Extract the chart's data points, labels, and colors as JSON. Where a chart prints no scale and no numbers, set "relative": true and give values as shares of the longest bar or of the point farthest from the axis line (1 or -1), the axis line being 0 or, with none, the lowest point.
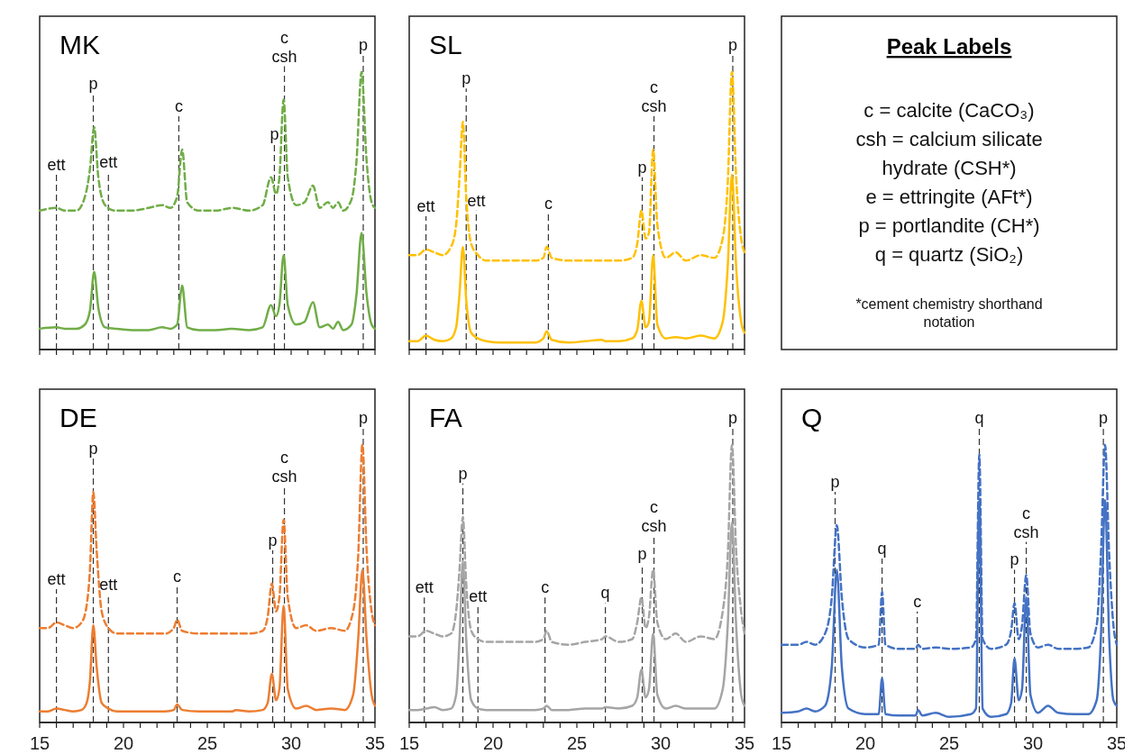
{
  "chart_data": [
    {
      "type": "line",
      "title": "MK",
      "relative": true,
      "xlim": [
        15,
        35
      ],
      "tick_labels": false,
      "xticks": [
        15,
        {
          "value": 16,
          "label": null
        },
        {
          "value": 17,
          "label": null
        },
        {
          "value": 18,
          "label": null
        },
        {
          "value": 19,
          "label": null
        },
        20,
        {
          "value": 21,
          "label": null
        },
        {
          "value": 22,
          "label": null
        },
        {
          "value": 23,
          "label": null
        },
        {
          "value": 24,
          "label": null
        },
        25,
        {
          "value": 26,
          "label": null
        },
        {
          "value": 27,
          "label": null
        },
        {
          "value": 28,
          "label": null
        },
        {
          "value": 29,
          "label": null
        },
        30,
        {
          "value": 31,
          "label": null
        },
        {
          "value": 32,
          "label": null
        },
        {
          "value": 33,
          "label": null
        },
        {
          "value": 34,
          "label": null
        },
        35
      ],
      "x": [
        15,
        16,
        16.5,
        17.2,
        17.7,
        18,
        18.25,
        18.5,
        18.9,
        19.5,
        20.5,
        21.5,
        22.3,
        22.8,
        23.2,
        23.5,
        23.8,
        24.5,
        25.5,
        26.5,
        27.5,
        28.3,
        28.8,
        29.1,
        29.3,
        29.55,
        29.8,
        30.3,
        30.8,
        31.3,
        31.7,
        32.2,
        32.5,
        32.8,
        33.1,
        33.6,
        33.9,
        34.2,
        34.5,
        34.8,
        35
      ],
      "series": [
        {
          "color": "#70ad47",
          "line_style": "dashed",
          "values": [
            0.5,
            0.51,
            0.5,
            0.5,
            0.55,
            0.65,
            0.8,
            0.62,
            0.52,
            0.5,
            0.5,
            0.51,
            0.52,
            0.51,
            0.55,
            0.72,
            0.53,
            0.5,
            0.5,
            0.51,
            0.5,
            0.52,
            0.62,
            0.56,
            0.62,
            0.9,
            0.62,
            0.52,
            0.53,
            0.59,
            0.51,
            0.53,
            0.51,
            0.53,
            0.5,
            0.54,
            0.68,
            1.0,
            0.68,
            0.53,
            0.51
          ]
        },
        {
          "color": "#70ad47",
          "line_style": "solid",
          "values": [
            0.075,
            0.08,
            0.075,
            0.075,
            0.09,
            0.14,
            0.28,
            0.15,
            0.08,
            0.075,
            0.07,
            0.07,
            0.08,
            0.075,
            0.09,
            0.23,
            0.08,
            0.07,
            0.07,
            0.075,
            0.07,
            0.08,
            0.16,
            0.12,
            0.16,
            0.34,
            0.16,
            0.09,
            0.1,
            0.17,
            0.08,
            0.09,
            0.075,
            0.1,
            0.07,
            0.09,
            0.2,
            0.42,
            0.2,
            0.09,
            0.075
          ]
        }
      ],
      "ref_lines": [
        {
          "axis": "x",
          "value": 16.0,
          "label": "ett",
          "line_style": "dashed"
        },
        {
          "axis": "x",
          "value": 18.2,
          "label": "p",
          "line_style": "dashed"
        },
        {
          "axis": "x",
          "value": 19.1,
          "label": "ett",
          "line_style": "dashed"
        },
        {
          "axis": "x",
          "value": 23.3,
          "label": "c",
          "line_style": "dashed"
        },
        {
          "axis": "x",
          "value": 29.0,
          "label": "p",
          "line_style": "dashed"
        },
        {
          "axis": "x",
          "value": 29.6,
          "label": "c\ncsh",
          "line_style": "dashed"
        },
        {
          "axis": "x",
          "value": 34.3,
          "label": "p",
          "line_style": "dashed"
        }
      ]
    },
    {
      "type": "line",
      "title": "SL",
      "relative": true,
      "xlim": [
        15,
        35
      ],
      "tick_labels": false,
      "xticks": [
        15,
        {
          "value": 16,
          "label": null
        },
        {
          "value": 17,
          "label": null
        },
        {
          "value": 18,
          "label": null
        },
        {
          "value": 19,
          "label": null
        },
        20,
        {
          "value": 21,
          "label": null
        },
        {
          "value": 22,
          "label": null
        },
        {
          "value": 23,
          "label": null
        },
        {
          "value": 24,
          "label": null
        },
        25,
        {
          "value": 26,
          "label": null
        },
        {
          "value": 27,
          "label": null
        },
        {
          "value": 28,
          "label": null
        },
        {
          "value": 29,
          "label": null
        },
        30,
        {
          "value": 31,
          "label": null
        },
        {
          "value": 32,
          "label": null
        },
        {
          "value": 33,
          "label": null
        },
        {
          "value": 34,
          "label": null
        },
        35
      ],
      "x": [
        15,
        15.5,
        16,
        16.5,
        17,
        17.5,
        17.8,
        18.0,
        18.2,
        18.4,
        18.7,
        19.1,
        19.6,
        20.5,
        21.5,
        22.5,
        23.0,
        23.2,
        23.5,
        24.5,
        25.5,
        26.5,
        26.7,
        27.5,
        28.3,
        28.6,
        28.85,
        29.1,
        29.3,
        29.55,
        29.8,
        30.3,
        30.9,
        31.5,
        32.4,
        33.2,
        33.7,
        34.0,
        34.25,
        34.5,
        34.8,
        35
      ],
      "series": [
        {
          "color": "#ffc000",
          "line_style": "dashed",
          "values": [
            0.34,
            0.34,
            0.36,
            0.35,
            0.34,
            0.37,
            0.45,
            0.62,
            0.82,
            0.55,
            0.38,
            0.34,
            0.32,
            0.32,
            0.32,
            0.32,
            0.33,
            0.37,
            0.33,
            0.32,
            0.32,
            0.32,
            0.32,
            0.32,
            0.33,
            0.38,
            0.5,
            0.4,
            0.42,
            0.72,
            0.45,
            0.33,
            0.35,
            0.32,
            0.34,
            0.33,
            0.4,
            0.6,
            1.0,
            0.62,
            0.4,
            0.35
          ]
        },
        {
          "color": "#ffc000",
          "line_style": "solid",
          "values": [
            0.03,
            0.03,
            0.05,
            0.035,
            0.03,
            0.04,
            0.08,
            0.2,
            0.37,
            0.18,
            0.06,
            0.04,
            0.03,
            0.025,
            0.025,
            0.025,
            0.04,
            0.066,
            0.035,
            0.025,
            0.03,
            0.035,
            0.03,
            0.03,
            0.04,
            0.07,
            0.175,
            0.08,
            0.1,
            0.34,
            0.09,
            0.04,
            0.045,
            0.04,
            0.05,
            0.04,
            0.1,
            0.3,
            0.63,
            0.3,
            0.1,
            0.06
          ]
        }
      ],
      "ref_lines": [
        {
          "axis": "x",
          "value": 16.0,
          "label": "ett",
          "line_style": "dashed"
        },
        {
          "axis": "x",
          "value": 18.4,
          "label": "p",
          "line_style": "dashed"
        },
        {
          "axis": "x",
          "value": 19.0,
          "label": "ett",
          "line_style": "dashed"
        },
        {
          "axis": "x",
          "value": 23.3,
          "label": "c",
          "line_style": "dashed"
        },
        {
          "axis": "x",
          "value": 28.9,
          "label": "p",
          "line_style": "dashed"
        },
        {
          "axis": "x",
          "value": 29.6,
          "label": "c\ncsh",
          "line_style": "dashed"
        },
        {
          "axis": "x",
          "value": 34.3,
          "label": "p",
          "line_style": "dashed"
        }
      ]
    },
    {
      "type": "other",
      "title": "Peak Labels",
      "annotations": [
        "c = calcite (CaCO₃)",
        "csh = calcium silicate",
        "hydrate (CSH*)",
        "e = ettringite (AFt*)",
        "p = portlandite (CH*)",
        "q = quartz (SiO₂)",
        "*cement chemistry shorthand",
        "notation"
      ]
    },
    {
      "type": "line",
      "title": "DE",
      "relative": true,
      "xlim": [
        15,
        35
      ],
      "xticks": [
        15,
        {
          "value": 16,
          "label": null
        },
        {
          "value": 17,
          "label": null
        },
        {
          "value": 18,
          "label": null
        },
        {
          "value": 19,
          "label": null
        },
        20,
        {
          "value": 21,
          "label": null
        },
        {
          "value": 22,
          "label": null
        },
        {
          "value": 23,
          "label": null
        },
        {
          "value": 24,
          "label": null
        },
        25,
        {
          "value": 26,
          "label": null
        },
        {
          "value": 27,
          "label": null
        },
        {
          "value": 28,
          "label": null
        },
        {
          "value": 29,
          "label": null
        },
        30,
        {
          "value": 31,
          "label": null
        },
        {
          "value": 32,
          "label": null
        },
        {
          "value": 33,
          "label": null
        },
        {
          "value": 34,
          "label": null
        },
        35
      ],
      "x": [
        15,
        15.5,
        16,
        16.5,
        17,
        17.5,
        17.8,
        18.0,
        18.2,
        18.4,
        18.7,
        19.1,
        19.6,
        20.5,
        21.5,
        22.5,
        23.0,
        23.2,
        23.5,
        24.5,
        25.5,
        26.5,
        26.7,
        27.5,
        28.3,
        28.6,
        28.85,
        29.1,
        29.3,
        29.55,
        29.8,
        30.3,
        30.9,
        31.5,
        32.4,
        33.2,
        33.7,
        34.0,
        34.25,
        34.5,
        34.8,
        35
      ],
      "series": [
        {
          "color": "#ed7d31",
          "line_style": "dashed",
          "values": [
            0.34,
            0.34,
            0.36,
            0.35,
            0.34,
            0.36,
            0.42,
            0.55,
            0.83,
            0.62,
            0.4,
            0.34,
            0.32,
            0.32,
            0.32,
            0.32,
            0.34,
            0.37,
            0.33,
            0.32,
            0.32,
            0.32,
            0.32,
            0.32,
            0.33,
            0.38,
            0.5,
            0.4,
            0.45,
            0.73,
            0.45,
            0.34,
            0.35,
            0.33,
            0.34,
            0.33,
            0.4,
            0.6,
            1.0,
            0.62,
            0.4,
            0.35
          ]
        },
        {
          "color": "#ed7d31",
          "line_style": "solid",
          "values": [
            0.04,
            0.04,
            0.05,
            0.045,
            0.04,
            0.045,
            0.07,
            0.15,
            0.35,
            0.2,
            0.07,
            0.05,
            0.04,
            0.04,
            0.04,
            0.04,
            0.045,
            0.065,
            0.045,
            0.04,
            0.04,
            0.04,
            0.045,
            0.04,
            0.045,
            0.07,
            0.175,
            0.08,
            0.12,
            0.42,
            0.12,
            0.05,
            0.06,
            0.045,
            0.05,
            0.045,
            0.1,
            0.3,
            0.55,
            0.3,
            0.1,
            0.06
          ]
        }
      ],
      "ref_lines": [
        {
          "axis": "x",
          "value": 16.0,
          "label": "ett",
          "line_style": "dashed"
        },
        {
          "axis": "x",
          "value": 18.2,
          "label": "p",
          "line_style": "dashed"
        },
        {
          "axis": "x",
          "value": 19.1,
          "label": "ett",
          "line_style": "dashed"
        },
        {
          "axis": "x",
          "value": 23.2,
          "label": "c",
          "line_style": "dashed"
        },
        {
          "axis": "x",
          "value": 28.9,
          "label": "p",
          "line_style": "dashed"
        },
        {
          "axis": "x",
          "value": 29.6,
          "label": "c\ncsh",
          "line_style": "dashed"
        },
        {
          "axis": "x",
          "value": 34.3,
          "label": "p",
          "line_style": "dashed"
        }
      ]
    },
    {
      "type": "line",
      "title": "FA",
      "relative": true,
      "xlim": [
        15,
        35
      ],
      "xticks": [
        15,
        {
          "value": 16,
          "label": null
        },
        {
          "value": 17,
          "label": null
        },
        {
          "value": 18,
          "label": null
        },
        {
          "value": 19,
          "label": null
        },
        20,
        {
          "value": 21,
          "label": null
        },
        {
          "value": 22,
          "label": null
        },
        {
          "value": 23,
          "label": null
        },
        {
          "value": 24,
          "label": null
        },
        25,
        {
          "value": 26,
          "label": null
        },
        {
          "value": 27,
          "label": null
        },
        {
          "value": 28,
          "label": null
        },
        {
          "value": 29,
          "label": null
        },
        30,
        {
          "value": 31,
          "label": null
        },
        {
          "value": 32,
          "label": null
        },
        {
          "value": 33,
          "label": null
        },
        {
          "value": 34,
          "label": null
        },
        35
      ],
      "x": [
        15,
        15.5,
        16,
        16.5,
        17,
        17.5,
        17.8,
        18.0,
        18.2,
        18.4,
        18.7,
        19.1,
        19.6,
        20.5,
        21.5,
        22.5,
        23.0,
        23.2,
        23.5,
        24.5,
        25.5,
        26.5,
        26.7,
        27.5,
        28.3,
        28.6,
        28.85,
        29.1,
        29.3,
        29.55,
        29.8,
        30.3,
        30.9,
        31.5,
        32.4,
        33.2,
        33.7,
        34.0,
        34.25,
        34.5,
        34.8,
        35
      ],
      "series": [
        {
          "color": "#a5a5a5",
          "line_style": "dashed",
          "values": [
            0.31,
            0.31,
            0.33,
            0.32,
            0.31,
            0.32,
            0.4,
            0.55,
            0.74,
            0.5,
            0.33,
            0.3,
            0.29,
            0.29,
            0.29,
            0.29,
            0.3,
            0.33,
            0.29,
            0.28,
            0.29,
            0.3,
            0.31,
            0.29,
            0.3,
            0.36,
            0.45,
            0.34,
            0.38,
            0.55,
            0.36,
            0.3,
            0.32,
            0.29,
            0.31,
            0.3,
            0.4,
            0.6,
            1.0,
            0.62,
            0.4,
            0.32
          ]
        },
        {
          "color": "#a5a5a5",
          "line_style": "solid",
          "values": [
            0.045,
            0.045,
            0.05,
            0.055,
            0.045,
            0.05,
            0.1,
            0.3,
            0.58,
            0.3,
            0.08,
            0.05,
            0.045,
            0.045,
            0.045,
            0.045,
            0.05,
            0.06,
            0.045,
            0.045,
            0.05,
            0.05,
            0.055,
            0.05,
            0.06,
            0.09,
            0.19,
            0.09,
            0.12,
            0.32,
            0.1,
            0.05,
            0.06,
            0.05,
            0.05,
            0.05,
            0.12,
            0.35,
            0.72,
            0.35,
            0.1,
            0.06
          ]
        }
      ],
      "ref_lines": [
        {
          "axis": "x",
          "value": 15.9,
          "label": "ett",
          "line_style": "dashed"
        },
        {
          "axis": "x",
          "value": 18.2,
          "label": "p",
          "line_style": "dashed"
        },
        {
          "axis": "x",
          "value": 19.1,
          "label": "ett",
          "line_style": "dashed"
        },
        {
          "axis": "x",
          "value": 23.1,
          "label": "c",
          "line_style": "dashed"
        },
        {
          "axis": "x",
          "value": 26.7,
          "label": "q",
          "line_style": "dashed"
        },
        {
          "axis": "x",
          "value": 28.9,
          "label": "p",
          "line_style": "dashed"
        },
        {
          "axis": "x",
          "value": 29.6,
          "label": "c\ncsh",
          "line_style": "dashed"
        },
        {
          "axis": "x",
          "value": 34.3,
          "label": "p",
          "line_style": "dashed"
        }
      ]
    },
    {
      "type": "line",
      "title": "Q",
      "relative": true,
      "xlim": [
        15,
        35
      ],
      "xticks": [
        15,
        {
          "value": 16,
          "label": null
        },
        {
          "value": 17,
          "label": null
        },
        {
          "value": 18,
          "label": null
        },
        {
          "value": 19,
          "label": null
        },
        20,
        {
          "value": 21,
          "label": null
        },
        {
          "value": 22,
          "label": null
        },
        {
          "value": 23,
          "label": null
        },
        {
          "value": 24,
          "label": null
        },
        25,
        {
          "value": 26,
          "label": null
        },
        {
          "value": 27,
          "label": null
        },
        {
          "value": 28,
          "label": null
        },
        {
          "value": 29,
          "label": null
        },
        30,
        {
          "value": 31,
          "label": null
        },
        {
          "value": 32,
          "label": null
        },
        {
          "value": 33,
          "label": null
        },
        {
          "value": 34,
          "label": null
        },
        35
      ],
      "x": [
        15,
        16,
        16.5,
        17,
        17.6,
        18.0,
        18.3,
        18.6,
        19.0,
        20,
        20.8,
        21.0,
        21.2,
        22,
        23.0,
        23.15,
        23.4,
        24.2,
        25,
        26.3,
        26.6,
        26.8,
        27.0,
        27.5,
        28.4,
        28.7,
        28.9,
        29.15,
        29.35,
        29.6,
        29.85,
        30.3,
        30.9,
        31.5,
        32.5,
        33.3,
        33.8,
        34.05,
        34.3,
        34.55,
        34.8,
        35
      ],
      "series": [
        {
          "color": "#4472c4",
          "line_style": "dashed",
          "values": [
            0.28,
            0.28,
            0.29,
            0.28,
            0.32,
            0.45,
            0.71,
            0.45,
            0.3,
            0.27,
            0.28,
            0.47,
            0.28,
            0.265,
            0.265,
            0.28,
            0.265,
            0.27,
            0.265,
            0.27,
            0.3,
            0.965,
            0.3,
            0.265,
            0.28,
            0.33,
            0.43,
            0.3,
            0.35,
            0.53,
            0.32,
            0.27,
            0.28,
            0.265,
            0.265,
            0.27,
            0.35,
            0.6,
            1.0,
            0.6,
            0.35,
            0.28
          ]
        },
        {
          "color": "#4472c4",
          "line_style": "solid",
          "values": [
            0.035,
            0.04,
            0.05,
            0.04,
            0.06,
            0.2,
            0.55,
            0.2,
            0.05,
            0.03,
            0.03,
            0.16,
            0.03,
            0.025,
            0.025,
            0.045,
            0.025,
            0.035,
            0.02,
            0.03,
            0.05,
            0.8,
            0.05,
            0.02,
            0.03,
            0.07,
            0.23,
            0.08,
            0.12,
            0.45,
            0.1,
            0.035,
            0.06,
            0.035,
            0.03,
            0.03,
            0.08,
            0.3,
            0.8,
            0.3,
            0.08,
            0.06
          ]
        }
      ],
      "ref_lines": [
        {
          "axis": "x",
          "value": 18.2,
          "label": "p",
          "line_style": "dashed"
        },
        {
          "axis": "x",
          "value": 21.0,
          "label": "q",
          "line_style": "dashed"
        },
        {
          "axis": "x",
          "value": 23.1,
          "label": "c",
          "line_style": "dashed"
        },
        {
          "axis": "x",
          "value": 26.8,
          "label": "q",
          "line_style": "dashed"
        },
        {
          "axis": "x",
          "value": 28.9,
          "label": "p",
          "line_style": "dashed"
        },
        {
          "axis": "x",
          "value": 29.6,
          "label": "c\ncsh",
          "line_style": "dashed"
        },
        {
          "axis": "x",
          "value": 34.2,
          "label": "p",
          "line_style": "dashed"
        }
      ]
    }
  ]
}
